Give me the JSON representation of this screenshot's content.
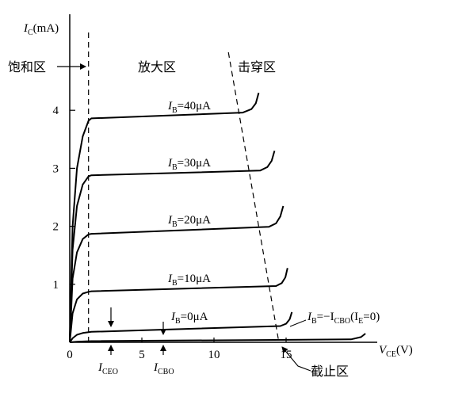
{
  "chart_data": {
    "type": "line",
    "x_axis": {
      "label_main": "V",
      "label_sub": "CE",
      "label_unit": "(V)",
      "range": [
        0,
        20.5
      ],
      "ticks": [
        {
          "value": 0,
          "label": "0"
        },
        {
          "value": 5,
          "label": "5"
        },
        {
          "value": 10,
          "label": "10"
        },
        {
          "value": 15,
          "label": "15"
        }
      ]
    },
    "y_axis": {
      "label_main": "I",
      "label_sub": "C",
      "label_unit": "(mA)",
      "range": [
        0,
        5.6
      ],
      "ticks": [
        {
          "value": 1,
          "label": "1"
        },
        {
          "value": 2,
          "label": "2"
        },
        {
          "value": 3,
          "label": "3"
        },
        {
          "value": 4,
          "label": "4"
        }
      ]
    },
    "series": [
      {
        "label_parts": [
          "I",
          "B",
          "=40μA"
        ],
        "points": [
          [
            0,
            0
          ],
          [
            0.2,
            2.0
          ],
          [
            0.5,
            3.0
          ],
          [
            0.9,
            3.55
          ],
          [
            1.3,
            3.82
          ],
          [
            1.5,
            3.86
          ],
          [
            12.0,
            3.96
          ],
          [
            12.6,
            4.02
          ],
          [
            12.9,
            4.12
          ],
          [
            13.1,
            4.3
          ]
        ]
      },
      {
        "label_parts": [
          "I",
          "B",
          "=30μA"
        ],
        "points": [
          [
            0,
            0
          ],
          [
            0.2,
            1.6
          ],
          [
            0.5,
            2.35
          ],
          [
            0.9,
            2.72
          ],
          [
            1.3,
            2.86
          ],
          [
            1.5,
            2.88
          ],
          [
            13.2,
            2.96
          ],
          [
            13.7,
            3.02
          ],
          [
            14.0,
            3.13
          ],
          [
            14.2,
            3.3
          ]
        ]
      },
      {
        "label_parts": [
          "I",
          "B",
          "=20μA"
        ],
        "points": [
          [
            0,
            0
          ],
          [
            0.2,
            1.1
          ],
          [
            0.5,
            1.55
          ],
          [
            0.9,
            1.78
          ],
          [
            1.3,
            1.86
          ],
          [
            1.5,
            1.87
          ],
          [
            13.8,
            1.99
          ],
          [
            14.3,
            2.05
          ],
          [
            14.6,
            2.17
          ],
          [
            14.8,
            2.35
          ]
        ]
      },
      {
        "label_parts": [
          "I",
          "B",
          "=10μA"
        ],
        "points": [
          [
            0,
            0
          ],
          [
            0.2,
            0.5
          ],
          [
            0.5,
            0.74
          ],
          [
            0.9,
            0.84
          ],
          [
            1.3,
            0.87
          ],
          [
            1.5,
            0.88
          ],
          [
            14.3,
            0.97
          ],
          [
            14.7,
            1.02
          ],
          [
            14.95,
            1.12
          ],
          [
            15.1,
            1.28
          ]
        ]
      },
      {
        "label_parts": [
          "I",
          "B",
          "=0μA"
        ],
        "points": [
          [
            0,
            0
          ],
          [
            0.2,
            0.07
          ],
          [
            0.5,
            0.13
          ],
          [
            0.9,
            0.16
          ],
          [
            1.5,
            0.18
          ],
          [
            14.6,
            0.28
          ],
          [
            15.0,
            0.32
          ],
          [
            15.25,
            0.4
          ],
          [
            15.4,
            0.52
          ]
        ]
      },
      {
        "label_parts": [
          "I",
          "B",
          "=−I",
          "CBO",
          "(I",
          "E",
          "=0)"
        ],
        "points": [
          [
            0,
            0
          ],
          [
            0.5,
            0.01
          ],
          [
            1.5,
            0.02
          ],
          [
            19.5,
            0.05
          ],
          [
            20.2,
            0.09
          ],
          [
            20.5,
            0.15
          ]
        ]
      }
    ],
    "boundaries": [
      {
        "name": "saturation-boundary",
        "points": [
          [
            1.3,
            0
          ],
          [
            1.3,
            5.4
          ]
        ]
      },
      {
        "name": "breakdown-boundary",
        "points": [
          [
            11.0,
            5.0
          ],
          [
            14.5,
            0
          ]
        ]
      }
    ],
    "regions": {
      "saturation": "饱和区",
      "amplification": "放大区",
      "breakdown": "击穿区",
      "cutoff": "截止区"
    },
    "markers": [
      {
        "name": "iceo",
        "x": 2.6,
        "label_main": "I",
        "label_sub": "CEO"
      },
      {
        "name": "icbo",
        "x": 6.3,
        "label_main": "I",
        "label_sub": "CBO"
      }
    ]
  }
}
